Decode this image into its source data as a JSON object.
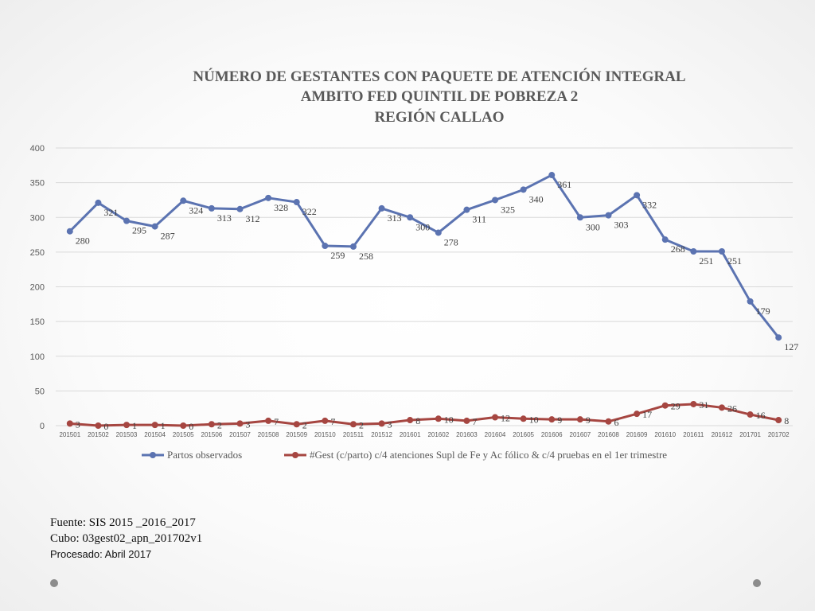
{
  "colors": {
    "series1": "#5b73b1",
    "series2": "#a64641",
    "grid": "#d9d9d9",
    "text": "#595959"
  },
  "chart_data": {
    "type": "line",
    "title": [
      "NÚMERO DE GESTANTES CON PAQUETE DE ATENCIÓN INTEGRAL",
      "AMBITO FED QUINTIL DE POBREZA 2",
      "REGIÓN CALLAO"
    ],
    "categories": [
      "201501",
      "201502",
      "201503",
      "201504",
      "201505",
      "201506",
      "201507",
      "201508",
      "201509",
      "201510",
      "201511",
      "201512",
      "201601",
      "201602",
      "201603",
      "201604",
      "201605",
      "201606",
      "201607",
      "201608",
      "201609",
      "201610",
      "201611",
      "201612",
      "201701",
      "201702"
    ],
    "ylim": [
      0,
      400
    ],
    "yticks": [
      0,
      50,
      100,
      150,
      200,
      250,
      300,
      350,
      400
    ],
    "grid": true,
    "legend": "bottom",
    "series": [
      {
        "name": "Partos observados",
        "color": "#5b73b1",
        "values": [
          280,
          321,
          295,
          287,
          324,
          313,
          312,
          328,
          322,
          259,
          258,
          313,
          300,
          278,
          311,
          325,
          340,
          361,
          300,
          303,
          332,
          268,
          251,
          251,
          179,
          127
        ]
      },
      {
        "name": "#Gest (c/parto) c/4 atenciones Supl de Fe y Ac fólico & c/4 pruebas en el 1er trimestre",
        "color": "#a64641",
        "values": [
          3,
          0,
          1,
          1,
          0,
          2,
          3,
          7,
          2,
          7,
          2,
          3,
          8,
          10,
          7,
          12,
          10,
          9,
          9,
          6,
          17,
          29,
          31,
          26,
          16,
          8
        ]
      }
    ]
  },
  "footer": {
    "line1": "Fuente: SIS 2015 _2016_2017",
    "line2": "Cubo:  03gest02_apn_201702v1",
    "line3": "Procesado: Abril 2017"
  }
}
